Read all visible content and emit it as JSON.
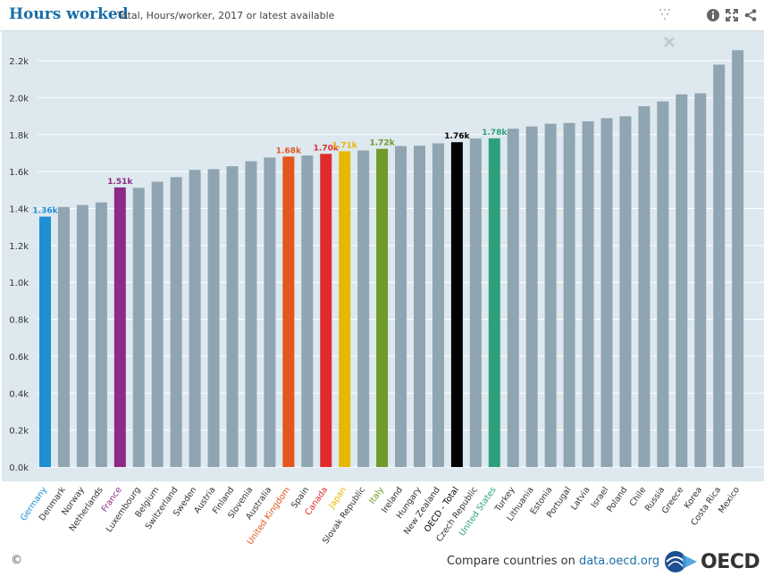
{
  "header": {
    "title": "Hours worked",
    "subtitle": "Total, Hours/worker, 2017 or latest available"
  },
  "icons": {
    "info": "info-icon",
    "expand": "expand-icon",
    "share": "share-icon",
    "drag": "drag-handle-icon",
    "close": "close-icon"
  },
  "footer": {
    "copyright": "©",
    "compare_prefix": "Compare countries on ",
    "compare_link": "data.oecd.org",
    "logo_text": "OECD"
  },
  "colors": {
    "default_bar": "#8fa5b1",
    "Germany": "#1d8fd3",
    "France": "#8c2a86",
    "United Kingdom": "#e2571d",
    "Canada": "#e02b2e",
    "Japan": "#e6b800",
    "Italy": "#6e9b28",
    "OECD - Total": "#000000",
    "United States": "#2da07a"
  },
  "chart_data": {
    "type": "bar",
    "title": "Hours worked",
    "subtitle": "Total, Hours/worker, 2017 or latest available",
    "xlabel": "",
    "ylabel": "",
    "ylim": [
      0,
      2300
    ],
    "yticks": [
      0,
      200,
      400,
      600,
      800,
      1000,
      1200,
      1400,
      1600,
      1800,
      2000,
      2200
    ],
    "ytick_labels": [
      "0.0k",
      "0.2k",
      "0.4k",
      "0.6k",
      "0.8k",
      "1.0k",
      "1.2k",
      "1.4k",
      "1.6k",
      "1.8k",
      "2.0k",
      "2.2k"
    ],
    "grid": true,
    "categories": [
      "Germany",
      "Denmark",
      "Norway",
      "Netherlands",
      "France",
      "Luxembourg",
      "Belgium",
      "Switzerland",
      "Sweden",
      "Austria",
      "Finland",
      "Slovenia",
      "Australia",
      "United Kingdom",
      "Spain",
      "Canada",
      "Japan",
      "Slovak Republic",
      "Italy",
      "Ireland",
      "Hungary",
      "New Zealand",
      "OECD - Total",
      "Czech Republic",
      "United States",
      "Turkey",
      "Lithuania",
      "Estonia",
      "Portugal",
      "Latvia",
      "Israel",
      "Poland",
      "Chile",
      "Russia",
      "Greece",
      "Korea",
      "Costa Rica",
      "Mexico"
    ],
    "values": [
      1356,
      1408,
      1419,
      1433,
      1514,
      1512,
      1545,
      1570,
      1609,
      1613,
      1629,
      1656,
      1676,
      1681,
      1687,
      1696,
      1710,
      1714,
      1723,
      1738,
      1740,
      1753,
      1759,
      1779,
      1780,
      1832,
      1844,
      1859,
      1863,
      1872,
      1889,
      1899,
      1954,
      1980,
      2018,
      2024,
      2179,
      2257
    ],
    "highlights": [
      {
        "country": "Germany",
        "label": "1.36k"
      },
      {
        "country": "France",
        "label": "1.51k"
      },
      {
        "country": "United Kingdom",
        "label": "1.68k"
      },
      {
        "country": "Canada",
        "label": "1.70k"
      },
      {
        "country": "Japan",
        "label": "1.71k"
      },
      {
        "country": "Italy",
        "label": "1.72k"
      },
      {
        "country": "OECD - Total",
        "label": "1.76k"
      },
      {
        "country": "United States",
        "label": "1.78k"
      }
    ]
  }
}
